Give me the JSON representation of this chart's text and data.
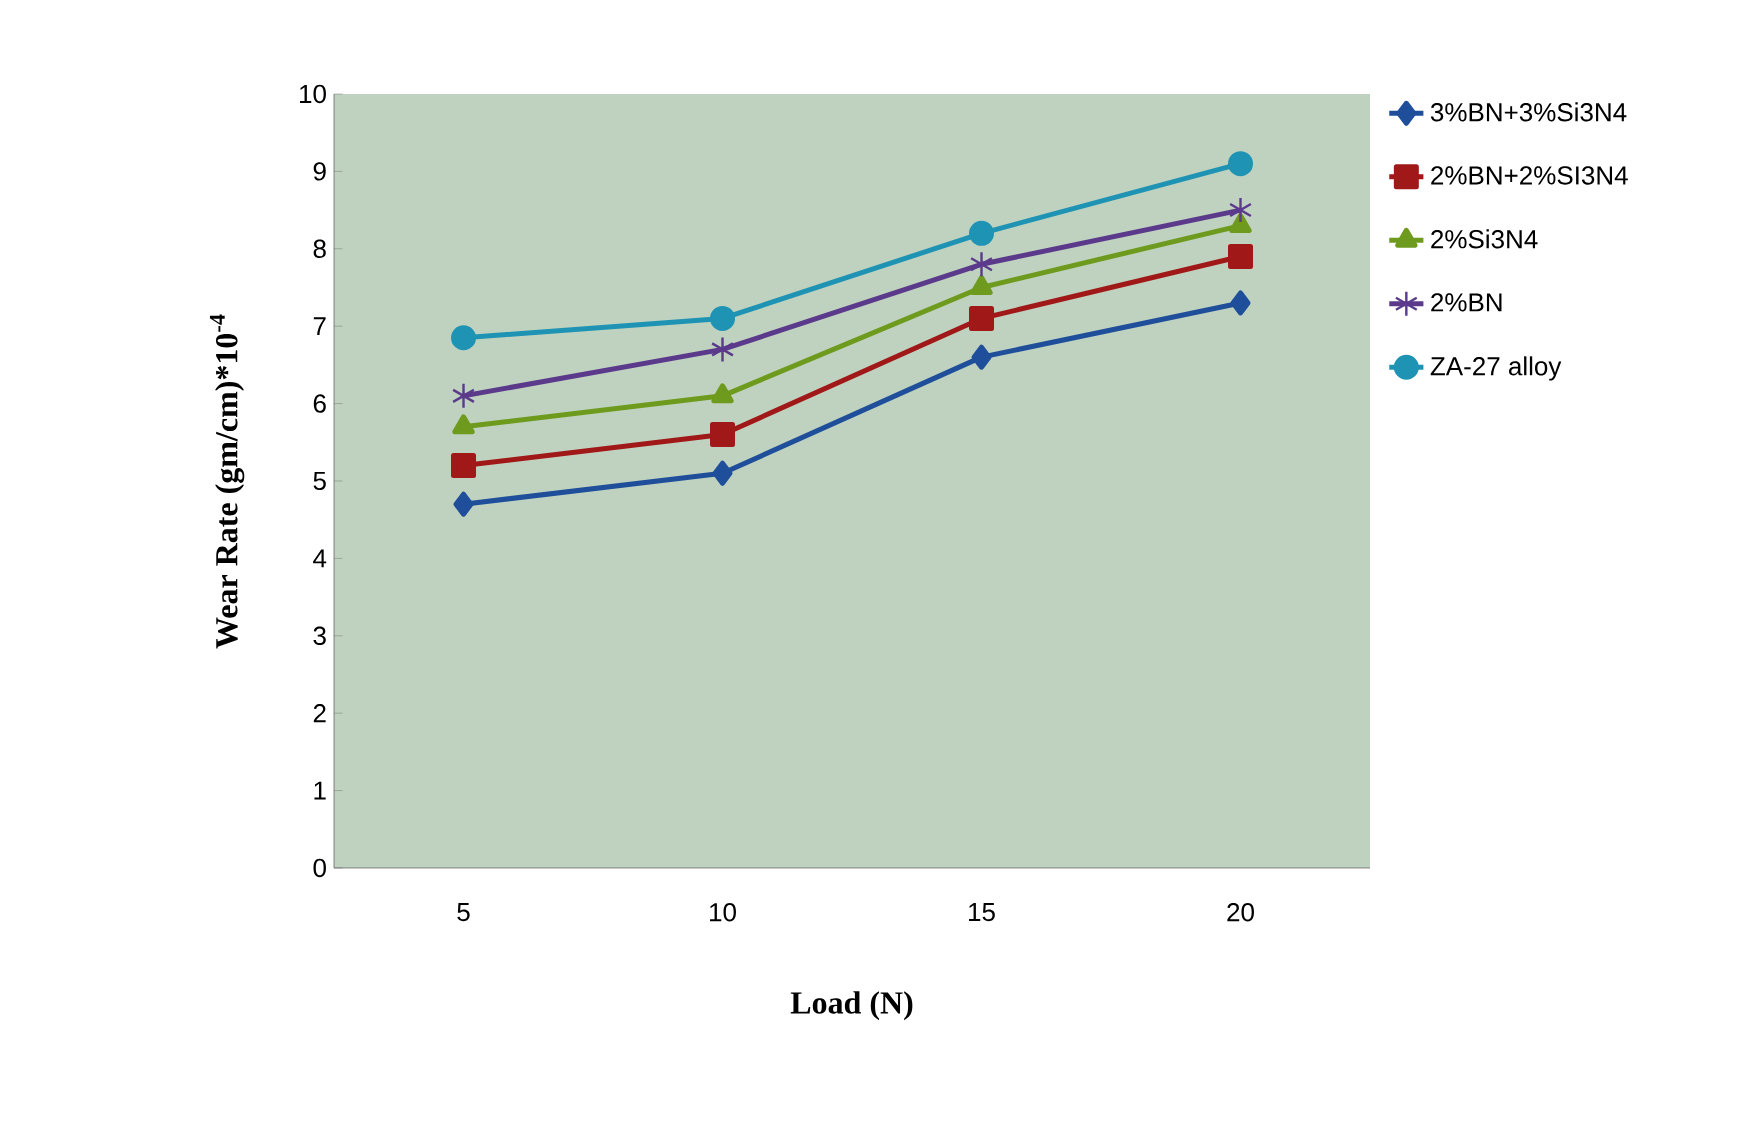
{
  "chart_data": {
    "type": "line",
    "xlabel": "Load (N)",
    "ylabel": "Wear Rate  (gm/cm)*10$^{-4}$",
    "categories": [
      "5",
      "10",
      "15",
      "20"
    ],
    "ylim": [
      0,
      10
    ],
    "yticks": [
      0,
      1,
      2,
      3,
      4,
      5,
      6,
      7,
      8,
      9,
      10
    ],
    "legend": "right",
    "grid": false,
    "series": [
      {
        "name": "3%BN+3%Si3N4",
        "color": "#1f4e9a",
        "marker": "diamond",
        "values": [
          4.7,
          5.1,
          6.6,
          7.3
        ]
      },
      {
        "name": "2%BN+2%SI3N4",
        "color": "#a01818",
        "marker": "square",
        "values": [
          5.2,
          5.6,
          7.1,
          7.9
        ]
      },
      {
        "name": "2%Si3N4",
        "color": "#6e9a1e",
        "marker": "triangle",
        "values": [
          5.7,
          6.1,
          7.5,
          8.3
        ]
      },
      {
        "name": "2%BN",
        "color": "#5b3a8c",
        "marker": "cross",
        "values": [
          6.1,
          6.7,
          7.8,
          8.5
        ]
      },
      {
        "name": "ZA-27 alloy",
        "color": "#1f93b4",
        "marker": "circle",
        "values": [
          6.85,
          7.1,
          8.2,
          9.1
        ]
      }
    ]
  }
}
